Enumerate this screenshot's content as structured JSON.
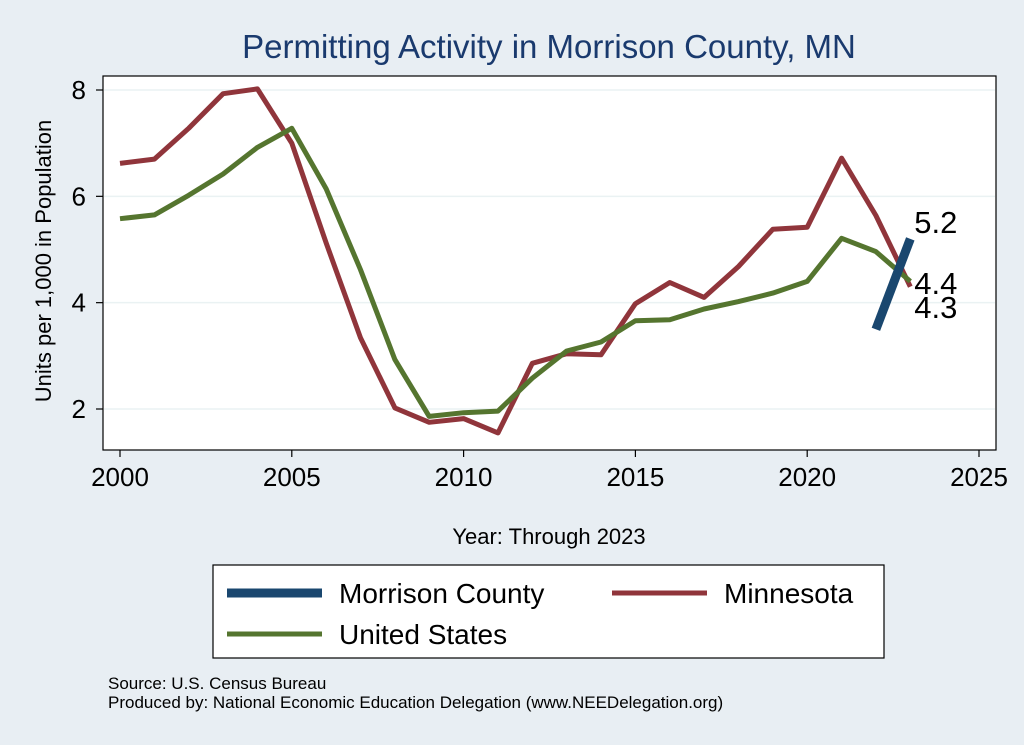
{
  "chart_data": {
    "type": "line",
    "title": "Permitting Activity in Morrison County, MN",
    "xlabel": "Year: Through 2023",
    "ylabel": "Units per 1,000 in Population",
    "xlim": [
      2000,
      2025
    ],
    "ylim": [
      1.2,
      8.2
    ],
    "xticks": [
      2000,
      2005,
      2010,
      2015,
      2020,
      2025
    ],
    "yticks": [
      2,
      4,
      6,
      8
    ],
    "grid": true,
    "series": [
      {
        "name": "Morrison County",
        "color": "#1a476f",
        "x": [
          2022,
          2023
        ],
        "y": [
          3.5,
          5.2
        ]
      },
      {
        "name": "Minnesota",
        "color": "#90353b",
        "x": [
          2000,
          2001,
          2002,
          2003,
          2004,
          2005,
          2006,
          2007,
          2008,
          2009,
          2010,
          2011,
          2012,
          2013,
          2014,
          2015,
          2016,
          2017,
          2018,
          2019,
          2020,
          2021,
          2022,
          2023
        ],
        "y": [
          6.62,
          6.7,
          7.28,
          7.93,
          8.02,
          7.0,
          5.12,
          3.34,
          2.02,
          1.75,
          1.82,
          1.55,
          2.86,
          3.04,
          3.02,
          3.98,
          4.38,
          4.1,
          4.68,
          5.38,
          5.42,
          6.72,
          5.64,
          4.3
        ]
      },
      {
        "name": "United States",
        "color": "#55752f",
        "x": [
          2000,
          2001,
          2002,
          2003,
          2004,
          2005,
          2006,
          2007,
          2008,
          2009,
          2010,
          2011,
          2012,
          2013,
          2014,
          2015,
          2016,
          2017,
          2018,
          2019,
          2020,
          2021,
          2022,
          2023
        ],
        "y": [
          5.58,
          5.65,
          6.02,
          6.42,
          6.92,
          7.28,
          6.14,
          4.62,
          2.93,
          1.86,
          1.93,
          1.96,
          2.58,
          3.09,
          3.26,
          3.66,
          3.68,
          3.88,
          4.02,
          4.18,
          4.4,
          5.21,
          4.96,
          4.4
        ]
      }
    ],
    "end_labels": [
      {
        "series": "Morrison County",
        "text": "5.2"
      },
      {
        "series": "United States",
        "text": "4.4"
      },
      {
        "series": "Minnesota",
        "text": "4.3"
      }
    ],
    "legend_position": "bottom"
  },
  "footer": {
    "source": "Source: U.S. Census Bureau",
    "produced_by": "Produced by: National Economic Education Delegation (www.NEEDelegation.org)"
  }
}
